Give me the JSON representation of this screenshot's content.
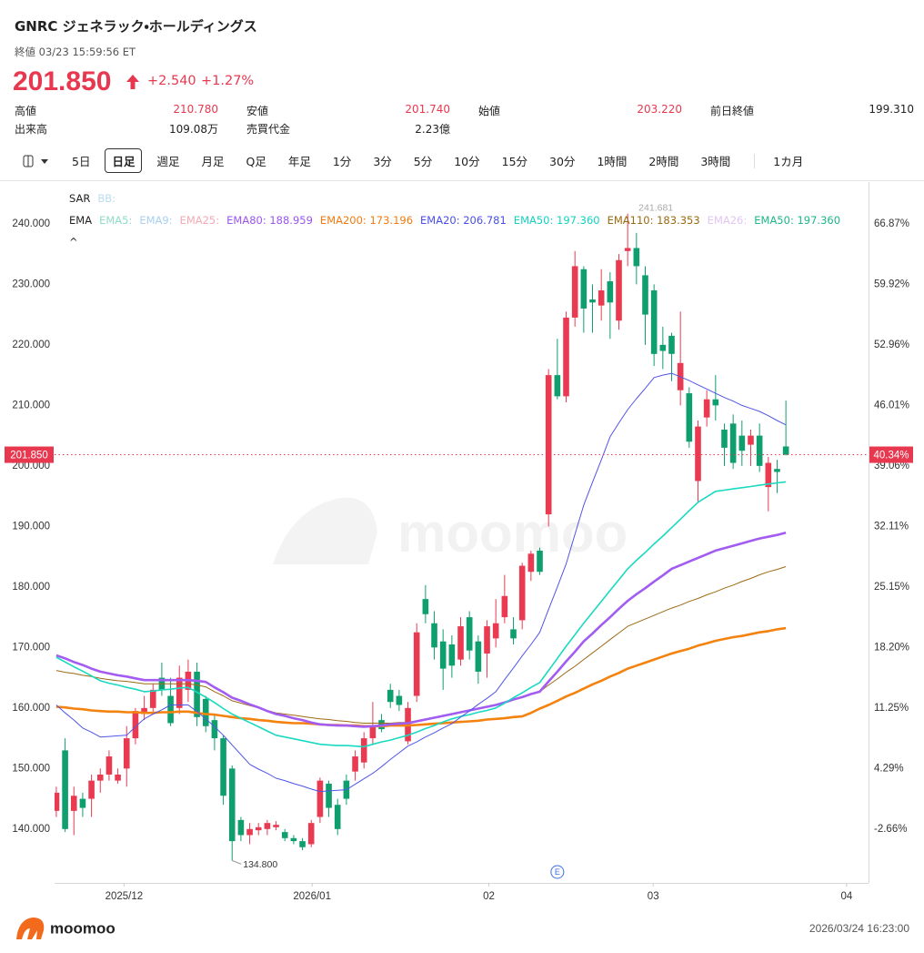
{
  "header": {
    "title": "GNRC ジェネラック・ホールディングス",
    "status": "終値 03/23 15:59:56 ET",
    "price": "201.850",
    "change": "+2.540",
    "change_pct": "+1.27%",
    "stats": [
      {
        "label": "高値",
        "value": "210.780",
        "color": "#e8384f"
      },
      {
        "label": "安値",
        "value": "201.740",
        "color": "#e8384f"
      },
      {
        "label": "始値",
        "value": "203.220",
        "color": "#e8384f"
      },
      {
        "label": "前日終値",
        "value": "199.310"
      },
      {
        "label": "出来高",
        "value": "109.08万"
      },
      {
        "label": "売買代金",
        "value": "2.23億"
      }
    ]
  },
  "toolbar": {
    "tabs": [
      {
        "label": "5日"
      },
      {
        "label": "日足",
        "selected": true
      },
      {
        "label": "週足"
      },
      {
        "label": "月足"
      },
      {
        "label": "Q足"
      },
      {
        "label": "年足"
      },
      {
        "label": "1分"
      },
      {
        "label": "3分"
      },
      {
        "label": "5分"
      },
      {
        "label": "10分"
      },
      {
        "label": "15分"
      },
      {
        "label": "30分"
      },
      {
        "label": "1時間"
      },
      {
        "label": "2時間"
      },
      {
        "label": "3時間",
        "dropdown": true
      },
      {
        "label": "1カ月",
        "dropdown": true
      }
    ]
  },
  "chart_data": {
    "type": "candlestick",
    "up_color": "#ea3a52",
    "down_color": "#0f9f6e",
    "grid": false,
    "indicators": [
      {
        "label": "SAR",
        "items": [
          {
            "text": "BB:",
            "color": "#b9dcee"
          }
        ]
      },
      {
        "label": "EMA",
        "items": [
          {
            "text": "EMA5:",
            "color": "#8fdcc6"
          },
          {
            "text": "EMA9:",
            "color": "#a9cfee"
          },
          {
            "text": "EMA25:",
            "color": "#f4a9b3"
          },
          {
            "text": "EMA80: 188.959",
            "color": "#9b55ef"
          },
          {
            "text": "EMA200: 173.196",
            "color": "#f07a10"
          },
          {
            "text": "EMA20: 206.781",
            "color": "#4a4ee8"
          },
          {
            "text": "EMA50: 197.360",
            "color": "#12d2c2"
          },
          {
            "text": "EMA110: 183.353",
            "color": "#9a6a10"
          },
          {
            "text": "EMA26:",
            "color": "#e2c6f4"
          },
          {
            "text": "EMA50: 197.360",
            "color": "#1db789"
          }
        ]
      }
    ],
    "collapse": "^",
    "open": [
      143,
      153,
      143,
      145,
      145,
      148,
      149,
      148,
      150,
      155,
      159,
      160,
      165,
      162,
      160,
      163,
      166,
      161.5,
      158,
      155,
      150,
      141.5,
      139,
      139.8,
      140,
      140.3,
      139.5,
      138.5,
      138,
      137.5,
      142,
      147.5,
      144,
      148,
      149.5,
      151,
      155,
      158,
      163,
      162,
      154.5,
      162,
      178,
      174,
      171,
      170.5,
      168,
      175,
      171,
      169,
      171.5,
      175,
      173,
      174.5,
      182.5,
      186,
      192,
      215,
      211.5,
      224.5,
      232.5,
      227.5,
      226.5,
      230.5,
      224,
      235.5,
      236,
      231.5,
      229,
      220,
      221.5,
      212.5,
      212,
      197.5,
      208,
      211,
      206,
      207,
      205,
      203.5,
      205,
      196.5,
      199.5,
      203.22
    ],
    "high": [
      147,
      155,
      147,
      146,
      149,
      150,
      153,
      150,
      157,
      160,
      162,
      164,
      167.5,
      165,
      167,
      168,
      167.5,
      162,
      159,
      155.5,
      150.5,
      142,
      141,
      141,
      141.5,
      141.3,
      140,
      139,
      138.5,
      141.5,
      148.5,
      148,
      145,
      149,
      153,
      156,
      161,
      159,
      164,
      163,
      161,
      174,
      180.3,
      176,
      173,
      172,
      175,
      176,
      172,
      174.5,
      178,
      182,
      175,
      184,
      186,
      186.5,
      216,
      221,
      225.5,
      235.5,
      233,
      230,
      232.5,
      232,
      235,
      241.681,
      238.5,
      233,
      230,
      223,
      222,
      225.5,
      213,
      207.5,
      212.5,
      215,
      207,
      208.5,
      207.5,
      206,
      207,
      201.5,
      201,
      210.78
    ],
    "low": [
      142,
      139.5,
      139,
      142,
      142,
      146,
      148,
      147.5,
      147,
      154,
      158,
      159,
      162,
      157,
      159,
      161,
      157,
      156,
      153,
      144,
      134.8,
      138,
      137.5,
      139,
      139,
      139.8,
      138,
      137.5,
      136.5,
      137,
      141,
      142,
      139,
      144,
      148,
      150,
      154,
      156,
      160,
      159.5,
      154,
      161,
      174,
      168,
      163,
      165,
      167,
      168,
      164,
      165,
      170,
      174,
      170.5,
      173,
      181,
      182,
      190,
      211,
      210.5,
      223,
      222,
      222,
      224,
      221,
      222.5,
      233,
      230,
      220,
      216.5,
      216,
      214,
      210,
      203,
      194,
      206.5,
      207.5,
      200,
      199.5,
      200,
      200,
      199,
      192.5,
      195.5,
      201.74
    ],
    "close": [
      146,
      140,
      145.5,
      143.5,
      148,
      149,
      152,
      149,
      155,
      159.5,
      160,
      163,
      163,
      157.5,
      165,
      166,
      158.5,
      157,
      155,
      145.5,
      138,
      139,
      140,
      140.3,
      141,
      140.7,
      138.5,
      138,
      137,
      141,
      148,
      143.5,
      140,
      145,
      152,
      155,
      157,
      156.5,
      161,
      160.5,
      160,
      172.5,
      175.5,
      170,
      166.5,
      167,
      173.5,
      169.5,
      166,
      173.5,
      174,
      178.5,
      171.5,
      183.5,
      185.5,
      182.5,
      215,
      211.5,
      224.5,
      233,
      226,
      227,
      229,
      227,
      234,
      236,
      233,
      225,
      218.5,
      219,
      218.5,
      217,
      204,
      206.5,
      211,
      210,
      203,
      200.5,
      202.5,
      205,
      200,
      200.5,
      199,
      201.85
    ],
    "series": [
      {
        "color": "#f4820f",
        "style": "thick",
        "values": [
          160.2,
          160.1,
          159.9,
          159.8,
          159.6,
          159.5,
          159.4,
          159.4,
          159.3,
          159.3,
          159.2,
          159.2,
          159.3,
          159.3,
          159.4,
          159.4,
          159.2,
          159.0,
          158.9,
          158.7,
          158.5,
          158.3,
          158.2,
          158.0,
          157.9,
          157.7,
          157.6,
          157.5,
          157.5,
          157.4,
          157.3,
          157.2,
          157.2,
          157.1,
          157.1,
          157.0,
          157.0,
          157.0,
          157.1,
          157.1,
          157.1,
          157.2,
          157.3,
          157.4,
          157.5,
          157.6,
          157.7,
          157.8,
          157.9,
          158.1,
          158.2,
          158.3,
          158.5,
          158.6,
          159.2,
          159.9,
          160.5,
          161.2,
          161.9,
          162.5,
          163.2,
          163.9,
          164.5,
          165.2,
          165.8,
          166.5,
          167.0,
          167.5,
          168.0,
          168.5,
          169.0,
          169.4,
          169.8,
          170.3,
          170.7,
          171.1,
          171.4,
          171.7,
          171.9,
          172.2,
          172.5,
          172.7,
          173.0,
          173.196
        ]
      },
      {
        "color": "#9c6a14",
        "style": "thin",
        "values": [
          166.2,
          165.9,
          165.7,
          165.4,
          165.2,
          164.9,
          164.7,
          164.5,
          164.4,
          164.2,
          164.0,
          164.0,
          164.0,
          164.0,
          164.0,
          164.0,
          163.8,
          163.5,
          162.7,
          162.0,
          161.2,
          160.8,
          160.4,
          160.0,
          159.6,
          159.2,
          159.0,
          158.8,
          158.6,
          158.4,
          158.2,
          158.1,
          157.9,
          157.8,
          157.6,
          157.5,
          157.5,
          157.5,
          157.5,
          157.6,
          157.6,
          157.9,
          158.2,
          158.4,
          158.7,
          159.0,
          159.3,
          159.6,
          159.9,
          160.2,
          160.5,
          160.9,
          161.4,
          161.8,
          162.3,
          162.7,
          163.8,
          164.8,
          165.9,
          166.9,
          168.0,
          169.1,
          170.2,
          171.3,
          172.4,
          173.5,
          174.1,
          174.7,
          175.3,
          175.9,
          176.5,
          177.0,
          177.6,
          178.1,
          178.7,
          179.2,
          179.8,
          180.3,
          180.9,
          181.4,
          182.0,
          182.5,
          182.9,
          183.353
        ]
      },
      {
        "color": "#a25cf2",
        "style": "thick",
        "values": [
          168.7,
          168.2,
          167.6,
          167.1,
          166.5,
          166.0,
          165.7,
          165.4,
          165.2,
          164.9,
          164.6,
          164.6,
          164.6,
          164.6,
          164.6,
          164.6,
          164.5,
          164.3,
          163.4,
          162.6,
          161.7,
          161.2,
          160.6,
          160.1,
          159.5,
          159.0,
          158.7,
          158.3,
          158.0,
          157.6,
          157.3,
          157.2,
          157.1,
          157.1,
          157.0,
          156.9,
          157.0,
          157.1,
          157.3,
          157.4,
          157.5,
          157.8,
          158.1,
          158.4,
          158.7,
          159.0,
          159.3,
          159.6,
          159.9,
          160.2,
          160.5,
          160.9,
          161.4,
          161.8,
          162.3,
          162.7,
          164.4,
          166.0,
          167.7,
          169.3,
          171.0,
          172.3,
          173.7,
          175.0,
          176.4,
          177.7,
          178.8,
          179.8,
          180.9,
          181.9,
          183.0,
          183.6,
          184.2,
          184.8,
          185.4,
          186.0,
          186.4,
          186.8,
          187.2,
          187.6,
          188.0,
          188.3,
          188.6,
          188.959
        ]
      },
      {
        "color": "#19d9c0",
        "style": "medium",
        "values": [
          168.4,
          167.6,
          166.8,
          166.1,
          165.3,
          164.5,
          164.1,
          163.8,
          163.4,
          163.1,
          162.7,
          162.8,
          163.0,
          163.1,
          163.3,
          163.4,
          162.6,
          161.8,
          160.9,
          159.9,
          159.0,
          158.3,
          157.6,
          156.9,
          156.2,
          155.5,
          155.2,
          154.9,
          154.6,
          154.3,
          154.0,
          153.9,
          153.8,
          153.8,
          153.7,
          153.6,
          154.0,
          154.4,
          154.7,
          155.1,
          155.5,
          156.0,
          156.6,
          157.1,
          157.7,
          158.2,
          158.6,
          158.9,
          159.3,
          159.6,
          160.0,
          160.8,
          161.7,
          162.5,
          163.4,
          164.2,
          166.2,
          168.2,
          170.2,
          172.1,
          174.0,
          175.8,
          177.6,
          179.4,
          181.2,
          183.0,
          184.4,
          185.7,
          187.1,
          188.4,
          189.8,
          191.2,
          192.6,
          194.0,
          194.9,
          195.8,
          196.0,
          196.2,
          196.4,
          196.6,
          196.8,
          197.0,
          197.2,
          197.36
        ]
      },
      {
        "color": "#5055e6",
        "style": "thin",
        "values": [
          160.5,
          159.2,
          158.0,
          156.7,
          156.0,
          155.2,
          155.3,
          155.4,
          155.5,
          156.9,
          158.2,
          159.0,
          159.7,
          160.5,
          160.5,
          160.5,
          159.4,
          158.2,
          156.9,
          155.5,
          153.9,
          152.3,
          150.7,
          149.9,
          149.2,
          148.4,
          148.0,
          147.5,
          147.1,
          146.6,
          146.2,
          146.3,
          146.4,
          146.5,
          147.4,
          148.3,
          149.2,
          150.3,
          151.5,
          152.6,
          153.7,
          154.4,
          155.2,
          155.9,
          156.7,
          157.4,
          158.5,
          159.5,
          160.6,
          161.6,
          162.7,
          164.7,
          166.6,
          168.6,
          170.5,
          172.5,
          176.3,
          180.0,
          183.8,
          188.7,
          193.5,
          197.3,
          201.0,
          204.8,
          207.1,
          209.3,
          211.1,
          212.8,
          214.6,
          215.0,
          215.3,
          214.7,
          214.1,
          213.4,
          212.7,
          212.0,
          211.3,
          210.7,
          210.0,
          209.5,
          209.0,
          208.3,
          207.5,
          206.781
        ]
      }
    ],
    "ylim": [
      131.1,
      246.9
    ],
    "yticks": [
      {
        "value": 140,
        "label": "140.000"
      },
      {
        "value": 150,
        "label": "150.000"
      },
      {
        "value": 160,
        "label": "160.000"
      },
      {
        "value": 170,
        "label": "170.000"
      },
      {
        "value": 180,
        "label": "180.000"
      },
      {
        "value": 190,
        "label": "190.000"
      },
      {
        "value": 200,
        "label": "200.000"
      },
      {
        "value": 210,
        "label": "210.000"
      },
      {
        "value": 220,
        "label": "220.000"
      },
      {
        "value": 230,
        "label": "230.000"
      },
      {
        "value": 240,
        "label": "240.000"
      }
    ],
    "y2lim": [
      -8.85,
      71.66
    ],
    "y2ticks": [
      {
        "value": -2.66,
        "label": "-2.66%"
      },
      {
        "value": 4.29,
        "label": "4.29%"
      },
      {
        "value": 11.25,
        "label": "11.25%"
      },
      {
        "value": 18.2,
        "label": "18.20%"
      },
      {
        "value": 25.15,
        "label": "25.15%"
      },
      {
        "value": 32.11,
        "label": "32.11%"
      },
      {
        "value": 39.06,
        "label": "39.06%"
      },
      {
        "value": 46.01,
        "label": "46.01%"
      },
      {
        "value": 52.96,
        "label": "52.96%"
      },
      {
        "value": 59.92,
        "label": "59.92%"
      },
      {
        "value": 66.87,
        "label": "66.87%"
      }
    ],
    "xlim": [
      -0.2,
      92.4
    ],
    "xticks": [
      {
        "value": 7.7,
        "label": "2025/12"
      },
      {
        "value": 29.1,
        "label": "2026/01"
      },
      {
        "value": 49.2,
        "label": "02"
      },
      {
        "value": 67.9,
        "label": "03"
      },
      {
        "value": 89.9,
        "label": "04"
      }
    ],
    "last": {
      "value": 201.85,
      "label": "201.850",
      "pct": {
        "value": 40.34,
        "label": "40.34%"
      }
    },
    "annotations": [
      {
        "kind": "high",
        "value": 241.681,
        "label": "241.681"
      },
      {
        "kind": "low",
        "value": 134.8,
        "label": "134.800"
      }
    ],
    "events": [
      {
        "x": 57,
        "label": "E"
      }
    ]
  },
  "watermark": "moomoo",
  "footer": {
    "brand": "moomoo",
    "timestamp": "2026/03/24 16:23:00"
  }
}
